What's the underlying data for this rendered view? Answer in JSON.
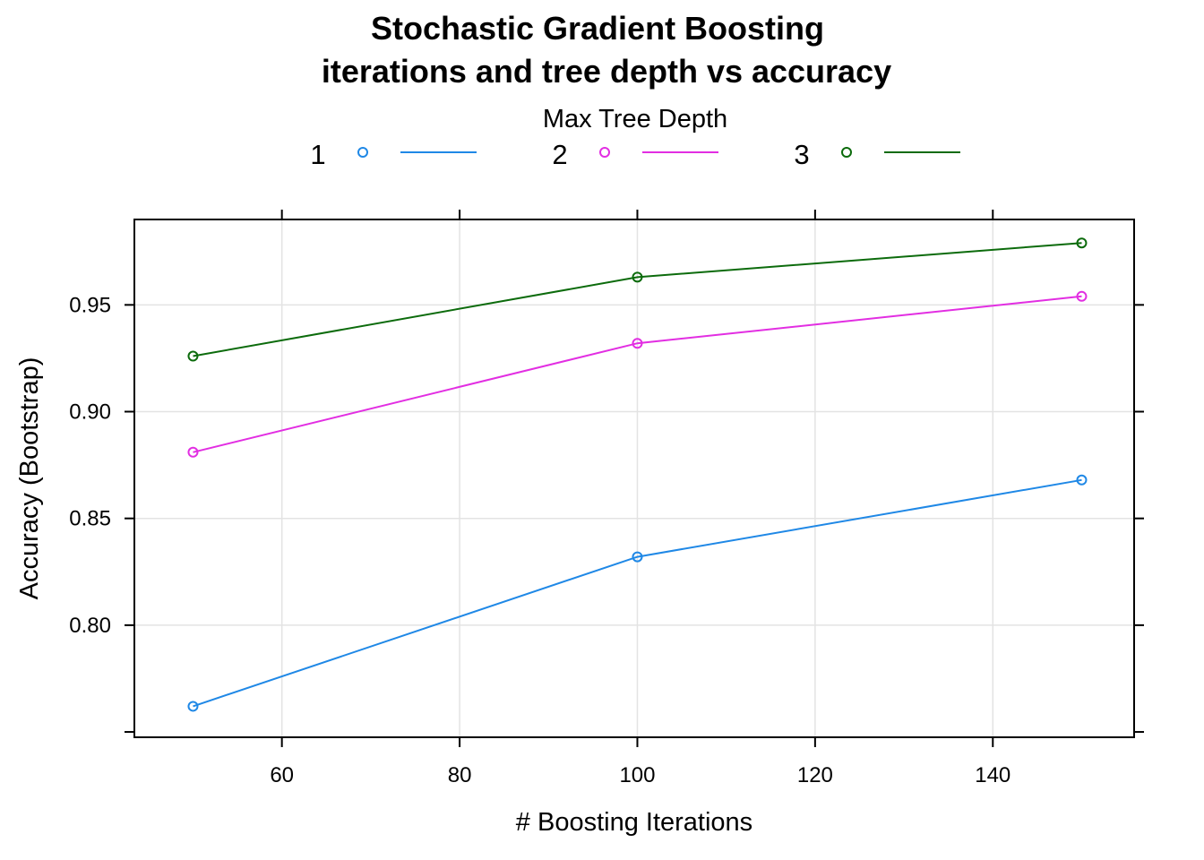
{
  "chart_data": {
    "type": "line",
    "title_lines": [
      "Stochastic Gradient Boosting",
      "iterations and tree depth vs accuracy"
    ],
    "xlabel": "# Boosting Iterations",
    "ylabel": "Accuracy (Bootstrap)",
    "legend_title": "Max Tree Depth",
    "legend_position": "top",
    "x": [
      50,
      100,
      150
    ],
    "xlim": [
      43.4,
      155.9
    ],
    "ylim": [
      0.7475,
      0.99
    ],
    "xticks": [
      60,
      80,
      100,
      120,
      140
    ],
    "yticks": [
      0.8,
      0.85,
      0.9,
      0.95
    ],
    "xtick_labels": [
      "60",
      "80",
      "100",
      "120",
      "140"
    ],
    "ytick_labels": [
      "0.80",
      "0.85",
      "0.90",
      "0.95"
    ],
    "grid": true,
    "series": [
      {
        "name": "1",
        "color": "#1f88e6",
        "values": [
          0.762,
          0.832,
          0.868
        ]
      },
      {
        "name": "2",
        "color": "#e22ee2",
        "values": [
          0.881,
          0.932,
          0.954
        ]
      },
      {
        "name": "3",
        "color": "#0c6b0c",
        "values": [
          0.926,
          0.963,
          0.979
        ]
      }
    ]
  }
}
